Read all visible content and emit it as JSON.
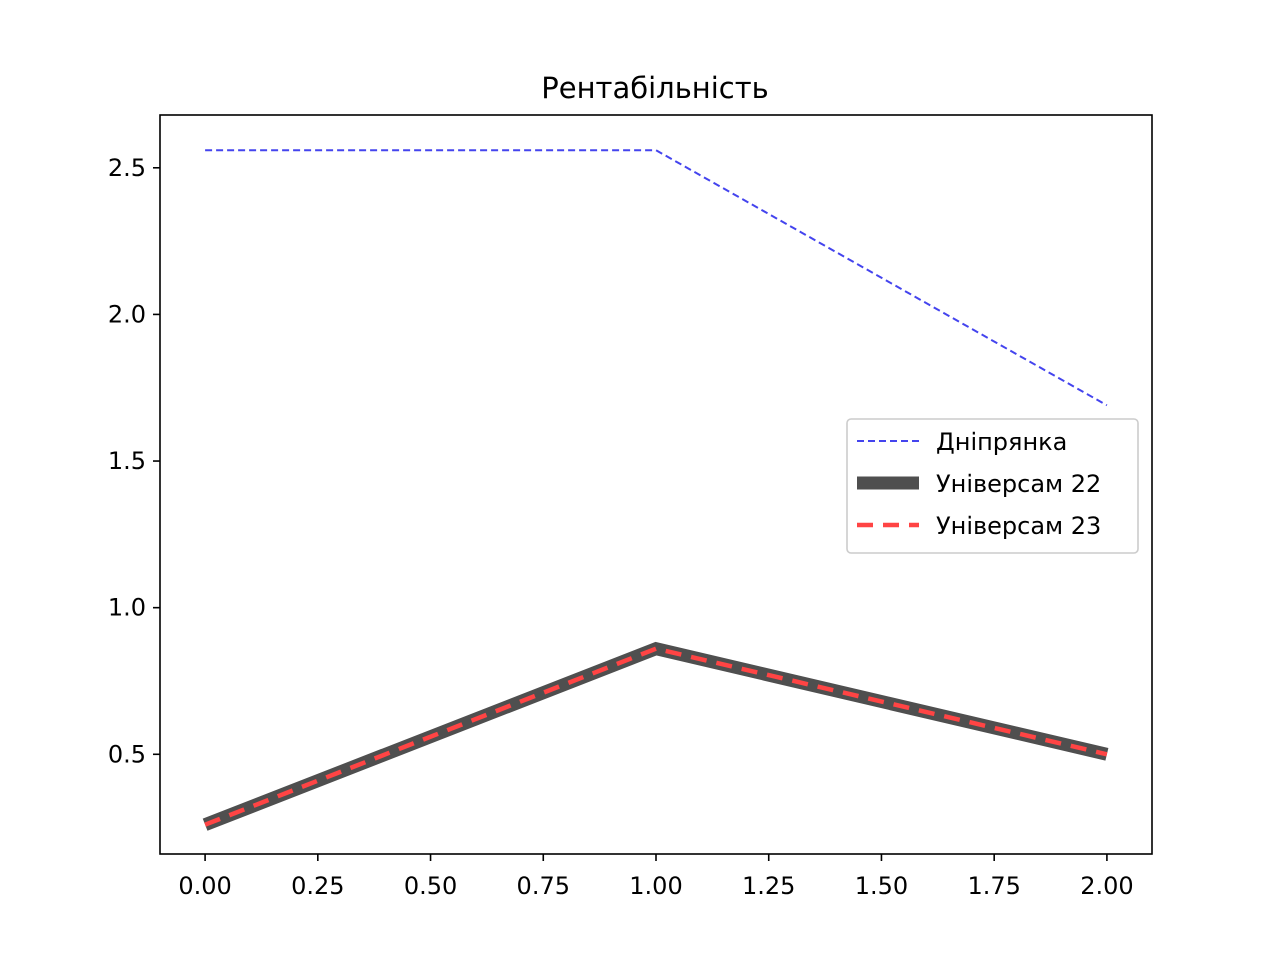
{
  "chart_data": {
    "type": "line",
    "title": "Рентабільність",
    "xlabel": "",
    "ylabel": "",
    "x": [
      0,
      1,
      2
    ],
    "xlim": [
      -0.1,
      2.1
    ],
    "ylim": [
      0.16,
      2.68
    ],
    "xticks": [
      "0.00",
      "0.25",
      "0.50",
      "0.75",
      "1.00",
      "1.25",
      "1.50",
      "1.75",
      "2.00"
    ],
    "yticks": [
      "0.5",
      "1.0",
      "1.5",
      "2.0",
      "2.5"
    ],
    "grid": false,
    "legend_position": "center-right",
    "series": [
      {
        "name": "Дніпрянка",
        "values": [
          2.56,
          2.56,
          1.69
        ],
        "color": "#4444ee",
        "style": "dashed-thin"
      },
      {
        "name": "Універсам 22",
        "values": [
          0.26,
          0.86,
          0.5
        ],
        "color": "#4f4f4f",
        "style": "solid-thick"
      },
      {
        "name": "Універсам 23",
        "values": [
          0.26,
          0.86,
          0.5
        ],
        "color": "#ff4444",
        "style": "dashed-medium"
      }
    ]
  }
}
